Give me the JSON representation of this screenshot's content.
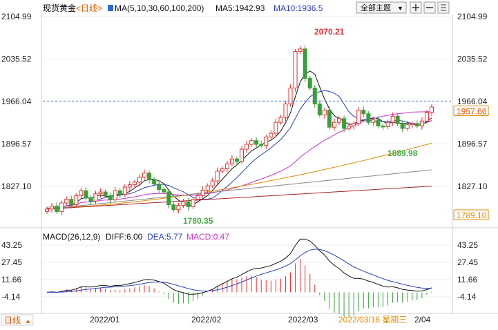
{
  "header": {
    "instrument": "现货黄金",
    "period": "<日线>",
    "ma_label": "MA(5,10,30,60,100,200)",
    "ma5": "MA5:1942.93",
    "ma10": "MA10:1936.5",
    "theme_button": "全部主题",
    "theme_arrow": "▼",
    "colors": {
      "instrument": "#000000",
      "period": "#e05a00",
      "ma5": "#111111",
      "ma10": "#2a3fbf"
    }
  },
  "main_chart": {
    "price_ticks_left": [
      "2104.99",
      "2035.52",
      "1966.04",
      "1896.57",
      "1827.10"
    ],
    "price_ticks_right": [
      "2104.99",
      "2035.52",
      "1966.04",
      "1896.57",
      "1827.10"
    ],
    "price_tick_values": [
      2104.99,
      2035.52,
      1966.04,
      1896.57,
      1827.1
    ],
    "current_price": "1957.66",
    "current_price_value": 1957.66,
    "bottom_price": "1789.10",
    "annotations": [
      {
        "text": "2070.21",
        "value": 2070.21,
        "color": "#e03030"
      },
      {
        "text": "1889.98",
        "value": 1889.98,
        "color": "#44aa44"
      },
      {
        "text": "1780.35",
        "value": 1780.35,
        "color": "#44aa44"
      }
    ],
    "colors": {
      "up": "#e03030",
      "down": "#38a038",
      "grid": "#e6e6e6",
      "current": "#3b7bd6",
      "axis_text": "#222222",
      "bottom_price": "#e08a00"
    }
  },
  "macd": {
    "label": "MACD(26,12,9)",
    "diff": "DIFF:6.00",
    "dea": "DEA:5.77",
    "macd": "MACD:0.47",
    "ticks_left": [
      "43.25",
      "27.45",
      "11.66",
      "-4.14"
    ],
    "ticks_right": [
      "43.25",
      "27.45",
      "11.66",
      "-4.14"
    ],
    "tick_values": [
      43.25,
      27.45,
      11.66,
      -4.14
    ],
    "colors": {
      "diff": "#111111",
      "dea": "#2a3fbf",
      "macd": "#cc33cc"
    }
  },
  "x_axis": {
    "labels": [
      "2022/01",
      "2022/02",
      "2022/03"
    ],
    "cursor_date": "2022/03/16 星期三",
    "last_date": "2/04",
    "bottom_left_label": "日线",
    "bottom_left_arrow": "▲"
  },
  "toolbar_icons": [
    "zoom-in-icon",
    "zoom-out-icon",
    "menu-icon"
  ]
}
